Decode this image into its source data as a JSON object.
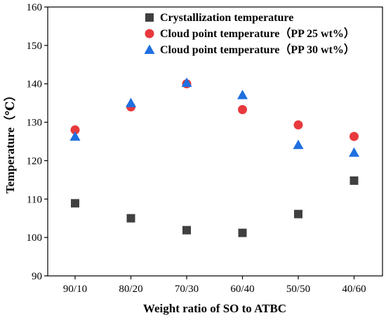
{
  "chart_data": {
    "type": "scatter",
    "categories": [
      "90/10",
      "80/20",
      "70/30",
      "60/40",
      "50/50",
      "40/60"
    ],
    "xlabel": "Weight ratio of SO to ATBC",
    "ylabel": "Temperature（℃）",
    "ylim": [
      90,
      160
    ],
    "yticks": [
      90,
      100,
      110,
      120,
      130,
      140,
      150,
      160
    ],
    "grid": false,
    "legend_position": "top-right",
    "series": [
      {
        "name": "Crystallization temperature",
        "marker": "square",
        "color": "#404040",
        "values": [
          108.9,
          105.0,
          101.9,
          101.2,
          106.1,
          114.8
        ]
      },
      {
        "name": "Cloud point temperature（PP 25 wt%）",
        "marker": "circle",
        "color": "#e8393d",
        "values": [
          128.0,
          134.0,
          140.0,
          133.3,
          129.3,
          126.3
        ]
      },
      {
        "name": "Cloud point temperature（PP 30 wt%）",
        "marker": "triangle",
        "color": "#1f6fe0",
        "values": [
          126.3,
          135.0,
          140.3,
          137.1,
          124.1,
          122.1
        ]
      }
    ]
  }
}
